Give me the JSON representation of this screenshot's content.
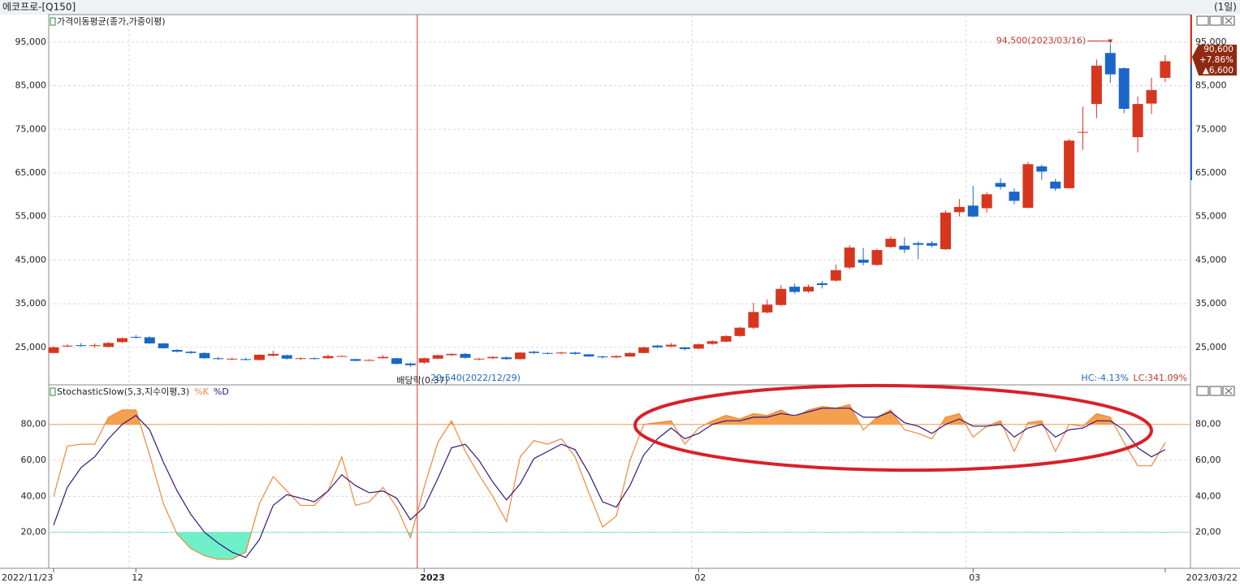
{
  "window": {
    "title": "에코프로-[Q150]",
    "period": "(1일)"
  },
  "chart_data": [
    {
      "type": "candlestick",
      "legend_title": "가격이동평균(종가,가중이평)",
      "categories": [
        "2022/11/23",
        null,
        null,
        null,
        null,
        null,
        "12",
        null,
        null,
        null,
        null,
        null,
        null,
        null,
        null,
        null,
        null,
        null,
        null,
        null,
        null,
        null,
        null,
        null,
        null,
        null,
        null,
        "2023",
        null,
        null,
        null,
        null,
        null,
        null,
        null,
        null,
        null,
        null,
        null,
        null,
        null,
        null,
        null,
        null,
        null,
        null,
        null,
        "02",
        null,
        null,
        null,
        null,
        null,
        null,
        null,
        null,
        null,
        null,
        null,
        null,
        null,
        null,
        null,
        null,
        null,
        null,
        null,
        "03",
        null,
        null,
        null,
        null,
        null,
        null,
        null,
        null,
        null,
        null,
        null,
        null,
        null,
        "2023/03/22"
      ],
      "open": [
        23700,
        25200,
        25500,
        25300,
        25100,
        26200,
        27400,
        27300,
        25900,
        24400,
        24000,
        23700,
        22500,
        22300,
        22300,
        22100,
        23100,
        23200,
        22400,
        22500,
        22500,
        22900,
        22300,
        22000,
        22500,
        22500,
        21300,
        21500,
        22400,
        23200,
        23500,
        22300,
        22500,
        22700,
        22300,
        24000,
        23700,
        23600,
        23800,
        23400,
        22900,
        22700,
        22900,
        23700,
        25400,
        25200,
        25000,
        24700,
        25800,
        26300,
        27600,
        29500,
        33000,
        34700,
        38900,
        37800,
        39700,
        40300,
        43300,
        45100,
        43900,
        48000,
        48300,
        48900,
        48900,
        47500,
        56000,
        57500,
        56900,
        62700,
        60700,
        57000,
        66500,
        63000,
        61500,
        74300,
        80800,
        92500,
        89000,
        73200,
        80900,
        86800
      ],
      "high": [
        25300,
        25700,
        26000,
        25900,
        26200,
        27300,
        27800,
        27500,
        26000,
        24600,
        24200,
        23900,
        22800,
        22600,
        22600,
        23400,
        24200,
        23300,
        22700,
        22700,
        23300,
        23200,
        22400,
        22300,
        23200,
        22600,
        21500,
        22700,
        23300,
        23600,
        23700,
        22600,
        23000,
        22900,
        23900,
        24200,
        23900,
        24000,
        24000,
        23500,
        23100,
        23200,
        23900,
        25200,
        25600,
        26000,
        25100,
        25900,
        26600,
        27800,
        29700,
        35200,
        36000,
        39300,
        39600,
        39400,
        40200,
        44000,
        48400,
        47800,
        47600,
        50400,
        50200,
        49300,
        49400,
        56400,
        59000,
        62000,
        60600,
        63800,
        61400,
        67500,
        66900,
        63600,
        72800,
        80200,
        91000,
        94500,
        89200,
        82500,
        86800,
        92000
      ],
      "low": [
        23600,
        25000,
        25100,
        24900,
        25000,
        26000,
        27000,
        25800,
        24700,
        23800,
        23500,
        22400,
        22100,
        22000,
        22000,
        22000,
        22900,
        22200,
        22100,
        22200,
        22400,
        22800,
        21800,
        21900,
        22400,
        21100,
        20540,
        21200,
        22300,
        23000,
        22400,
        22000,
        22300,
        22100,
        22200,
        23500,
        23400,
        23400,
        23300,
        22800,
        22400,
        22500,
        22800,
        23600,
        24800,
        25000,
        24300,
        24500,
        25600,
        26200,
        27400,
        29200,
        32800,
        34500,
        37300,
        37500,
        38500,
        40100,
        42900,
        43800,
        43700,
        47800,
        46600,
        45200,
        47900,
        47300,
        55000,
        54800,
        55900,
        61200,
        57800,
        56900,
        63400,
        60900,
        61400,
        70300,
        77600,
        85600,
        78700,
        69700,
        78500,
        85800
      ],
      "close": [
        25000,
        25400,
        25300,
        25500,
        26000,
        27100,
        27300,
        25900,
        24800,
        24000,
        23700,
        22500,
        22300,
        22400,
        22100,
        23300,
        23500,
        22400,
        22500,
        22400,
        23000,
        23000,
        21900,
        22100,
        22800,
        21200,
        20900,
        22500,
        23200,
        23500,
        22600,
        22400,
        22800,
        22300,
        23800,
        23700,
        23600,
        23800,
        23500,
        22900,
        22700,
        23000,
        23700,
        25000,
        25000,
        25600,
        24600,
        25700,
        26400,
        27600,
        29500,
        33100,
        34800,
        38400,
        37700,
        38900,
        39300,
        42700,
        47900,
        44400,
        47300,
        49900,
        47400,
        48500,
        48300,
        55900,
        57200,
        55000,
        60100,
        61800,
        58600,
        67000,
        65300,
        61400,
        72400,
        74400,
        89600,
        87600,
        79700,
        80800,
        84000,
        90600
      ],
      "up_color": "#d7361e",
      "down_color": "#1b67c9",
      "ylim": [
        16400,
        101300
      ],
      "yticks": [
        {
          "value": 25000,
          "label": "25,000"
        },
        {
          "value": 35000,
          "label": "35,000"
        },
        {
          "value": 45000,
          "label": "45,000"
        },
        {
          "value": 55000,
          "label": "55,000"
        },
        {
          "value": 65000,
          "label": "65,000"
        },
        {
          "value": 75000,
          "label": "75,000"
        },
        {
          "value": 85000,
          "label": "85,000"
        },
        {
          "value": 95000,
          "label": "95,000"
        }
      ],
      "grid": true,
      "max_label": "94,500(2023/03/16)",
      "min_label": "20,540(2022/12/29)",
      "dividend_label": "배당락(0.37)",
      "hc_label": "HC:-4.13%",
      "lc_label": "LC:341.09%",
      "last_price": {
        "price": "90,600",
        "change_pct": "+7.86%",
        "change": "▲6,600"
      }
    },
    {
      "type": "line",
      "title": "StochasticSlow(5,3,지수이평,3)",
      "series": [
        {
          "name": "%K",
          "color": "#f0883a",
          "values": [
            40,
            68,
            69,
            69,
            84,
            88,
            88,
            63,
            36,
            19,
            11,
            7,
            5,
            5,
            9,
            36,
            51,
            43,
            35,
            35,
            43,
            62,
            35,
            37,
            45,
            34,
            17,
            45,
            70,
            82,
            65,
            52,
            40,
            26,
            62,
            71,
            69,
            72,
            62,
            42,
            23,
            29,
            60,
            80,
            81,
            82,
            69,
            78,
            82,
            85,
            83,
            86,
            85,
            88,
            84,
            88,
            90,
            89,
            91,
            77,
            84,
            88,
            77,
            75,
            72,
            84,
            86,
            73,
            79,
            82,
            65,
            81,
            82,
            65,
            80,
            79,
            86,
            84,
            70,
            57,
            57,
            70
          ]
        },
        {
          "name": "%D",
          "color": "#33167a",
          "values": [
            24,
            45,
            56,
            62,
            72,
            80,
            85,
            77,
            59,
            43,
            30,
            20,
            14,
            9,
            6,
            16,
            35,
            41,
            39,
            37,
            43,
            52,
            46,
            42,
            43,
            39,
            27,
            34,
            50,
            67,
            69,
            60,
            48,
            38,
            47,
            61,
            65,
            69,
            66,
            53,
            37,
            34,
            46,
            63,
            72,
            78,
            72,
            75,
            80,
            82,
            82,
            84,
            84,
            86,
            85,
            87,
            89,
            89,
            89,
            84,
            84,
            87,
            81,
            79,
            75,
            80,
            83,
            79,
            79,
            80,
            73,
            78,
            80,
            73,
            77,
            78,
            82,
            82,
            77,
            67,
            62,
            66
          ]
        }
      ],
      "ylim": [
        0,
        102
      ],
      "yticks": [
        {
          "value": 20,
          "label": "20,00"
        },
        {
          "value": 40,
          "label": "40,00"
        },
        {
          "value": 60,
          "label": "60,00"
        },
        {
          "value": 80,
          "label": "80,00"
        }
      ],
      "grid": true,
      "reference_lines": [
        {
          "value": 80,
          "color": "#f2a05a"
        },
        {
          "value": 20,
          "color": "#86e0d4"
        }
      ],
      "overbought_fill": "#f5a04f",
      "oversold_fill": "#6ff0c8"
    }
  ]
}
